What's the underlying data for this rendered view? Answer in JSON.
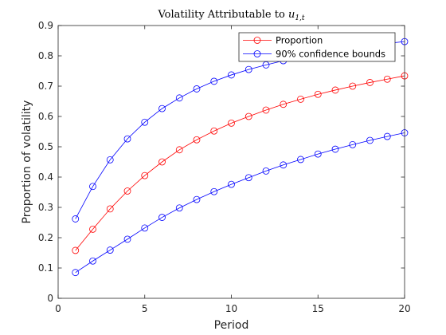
{
  "chart_data": {
    "type": "line",
    "title": "Volatility Attributable to ",
    "title_math_base": "u",
    "title_math_sub": "1,t",
    "xlabel": "Period",
    "ylabel": "Proportion of volatility",
    "xlim": [
      0,
      20
    ],
    "ylim": [
      0,
      0.9
    ],
    "xticks": [
      0,
      5,
      10,
      15,
      20
    ],
    "yticks": [
      0,
      0.1,
      0.2,
      0.3,
      0.4,
      0.5,
      0.6,
      0.7,
      0.8,
      0.9
    ],
    "grid": false,
    "legend_position": "top-right",
    "x": [
      1,
      2,
      3,
      4,
      5,
      6,
      7,
      8,
      9,
      10,
      11,
      12,
      13,
      14,
      15,
      16,
      17,
      18,
      19,
      20
    ],
    "series": [
      {
        "name": "Proportion",
        "color": "#ff0000",
        "marker": "circle",
        "values": [
          0.158,
          0.228,
          0.295,
          0.354,
          0.405,
          0.45,
          0.49,
          0.523,
          0.552,
          0.578,
          0.6,
          0.621,
          0.64,
          0.657,
          0.673,
          0.687,
          0.7,
          0.712,
          0.723,
          0.734
        ]
      },
      {
        "name": "90% confidence bounds",
        "color": "#0000ff",
        "marker": "circle",
        "values": [
          0.262,
          0.369,
          0.457,
          0.526,
          0.581,
          0.626,
          0.661,
          0.691,
          0.716,
          0.737,
          0.755,
          0.77,
          0.784,
          0.796,
          0.807,
          0.817,
          0.826,
          0.834,
          0.841,
          0.847
        ]
      },
      {
        "name": "",
        "color": "#0000ff",
        "marker": "circle",
        "values": [
          0.085,
          0.123,
          0.159,
          0.195,
          0.232,
          0.267,
          0.298,
          0.326,
          0.352,
          0.376,
          0.398,
          0.42,
          0.44,
          0.458,
          0.476,
          0.492,
          0.507,
          0.521,
          0.534,
          0.546
        ]
      }
    ]
  }
}
